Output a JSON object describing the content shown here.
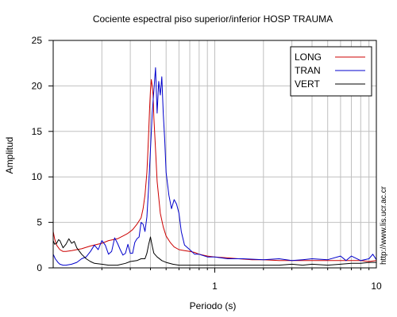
{
  "chart_data": {
    "type": "line",
    "title": "Cociente espectral piso superior/inferior  HOSP TRAUMA",
    "xlabel": "Periodo (s)",
    "ylabel": "Amplitud",
    "x_scale": "log",
    "xlim": [
      0.1,
      10
    ],
    "ylim": [
      0,
      25
    ],
    "x_tick_labels": [
      {
        "value": 1,
        "label": "1"
      },
      {
        "value": 10,
        "label": "10"
      }
    ],
    "y_ticks": [
      0,
      5,
      10,
      15,
      20,
      25
    ],
    "grid": true,
    "legend_position": "top-right",
    "side_text": "http://www.lis.ucr.ac.cr",
    "series": [
      {
        "name": "LONG",
        "color": "#cc0000",
        "x": [
          0.1,
          0.102,
          0.105,
          0.11,
          0.115,
          0.12,
          0.13,
          0.14,
          0.15,
          0.17,
          0.2,
          0.22,
          0.25,
          0.27,
          0.29,
          0.31,
          0.33,
          0.35,
          0.36,
          0.37,
          0.38,
          0.385,
          0.39,
          0.395,
          0.4,
          0.405,
          0.41,
          0.415,
          0.42,
          0.43,
          0.44,
          0.46,
          0.48,
          0.5,
          0.53,
          0.56,
          0.6,
          0.65,
          0.7,
          0.75,
          0.8,
          0.9,
          1.0,
          1.2,
          1.4,
          1.7,
          2.0,
          2.5,
          3.0,
          3.5,
          4.0,
          5.0,
          6.0,
          7.0,
          8.0,
          9.0,
          10.0
        ],
        "y": [
          4.0,
          3.2,
          2.5,
          2.0,
          1.8,
          1.8,
          1.9,
          2.0,
          2.1,
          2.4,
          2.7,
          3.0,
          3.2,
          3.5,
          3.8,
          4.2,
          4.8,
          5.5,
          6.5,
          8.0,
          10.5,
          12.5,
          15.0,
          17.5,
          19.5,
          20.7,
          20.0,
          19.0,
          16.5,
          13.0,
          9.5,
          6.0,
          4.5,
          3.5,
          2.8,
          2.3,
          2.0,
          1.9,
          1.8,
          1.7,
          1.5,
          1.3,
          1.2,
          1.1,
          1.0,
          0.9,
          0.9,
          0.8,
          0.8,
          0.8,
          0.8,
          0.8,
          0.8,
          0.8,
          0.8,
          0.7,
          0.8
        ]
      },
      {
        "name": "TRAN",
        "color": "#0000cc",
        "x": [
          0.1,
          0.103,
          0.107,
          0.11,
          0.115,
          0.12,
          0.13,
          0.14,
          0.15,
          0.16,
          0.17,
          0.18,
          0.19,
          0.2,
          0.21,
          0.22,
          0.23,
          0.24,
          0.25,
          0.26,
          0.27,
          0.28,
          0.29,
          0.3,
          0.31,
          0.32,
          0.33,
          0.34,
          0.35,
          0.36,
          0.37,
          0.38,
          0.39,
          0.4,
          0.41,
          0.42,
          0.43,
          0.44,
          0.45,
          0.46,
          0.47,
          0.48,
          0.49,
          0.5,
          0.52,
          0.54,
          0.56,
          0.58,
          0.6,
          0.62,
          0.65,
          0.7,
          0.75,
          0.8,
          0.9,
          1.0,
          1.2,
          1.5,
          2.0,
          2.5,
          3.0,
          3.5,
          4.0,
          5.0,
          6.0,
          6.5,
          7.0,
          8.0,
          9.0,
          9.5,
          10.0
        ],
        "y": [
          1.5,
          1.0,
          0.6,
          0.4,
          0.3,
          0.3,
          0.4,
          0.6,
          1.0,
          1.2,
          1.8,
          2.5,
          2.0,
          3.0,
          2.5,
          1.5,
          1.8,
          3.3,
          2.7,
          2.0,
          1.4,
          1.6,
          2.6,
          1.6,
          1.6,
          2.8,
          3.2,
          3.4,
          5.0,
          4.8,
          4.0,
          5.6,
          9.0,
          13.0,
          17.0,
          19.5,
          22.0,
          17.0,
          20.5,
          19.0,
          21.0,
          17.0,
          14.0,
          10.5,
          8.0,
          6.5,
          7.5,
          7.0,
          6.0,
          4.0,
          2.5,
          2.0,
          1.5,
          1.5,
          1.2,
          1.2,
          1.0,
          1.0,
          0.9,
          1.0,
          0.8,
          0.9,
          1.0,
          0.9,
          1.3,
          0.8,
          1.3,
          0.8,
          1.0,
          1.5,
          0.9
        ]
      },
      {
        "name": "VERT",
        "color": "#000000",
        "x": [
          0.1,
          0.102,
          0.105,
          0.108,
          0.11,
          0.115,
          0.12,
          0.125,
          0.13,
          0.135,
          0.14,
          0.15,
          0.16,
          0.17,
          0.18,
          0.2,
          0.22,
          0.25,
          0.28,
          0.3,
          0.33,
          0.35,
          0.37,
          0.38,
          0.39,
          0.4,
          0.41,
          0.42,
          0.44,
          0.47,
          0.5,
          0.55,
          0.6,
          0.7,
          0.8,
          1.0,
          1.2,
          1.5,
          2.0,
          2.5,
          3.0,
          3.5,
          4.0,
          5.0,
          6.0,
          7.0,
          8.0,
          9.0,
          10.0
        ],
        "y": [
          3.0,
          2.6,
          2.7,
          3.1,
          3.0,
          2.2,
          2.6,
          3.2,
          2.7,
          2.9,
          2.2,
          1.5,
          1.0,
          0.7,
          0.5,
          0.4,
          0.3,
          0.3,
          0.5,
          0.7,
          0.8,
          1.0,
          1.0,
          1.6,
          2.6,
          3.4,
          2.4,
          1.6,
          1.2,
          0.8,
          0.6,
          0.4,
          0.3,
          0.3,
          0.3,
          0.3,
          0.3,
          0.3,
          0.3,
          0.3,
          0.4,
          0.3,
          0.4,
          0.3,
          0.4,
          0.5,
          0.5,
          0.6,
          0.6
        ]
      }
    ]
  }
}
